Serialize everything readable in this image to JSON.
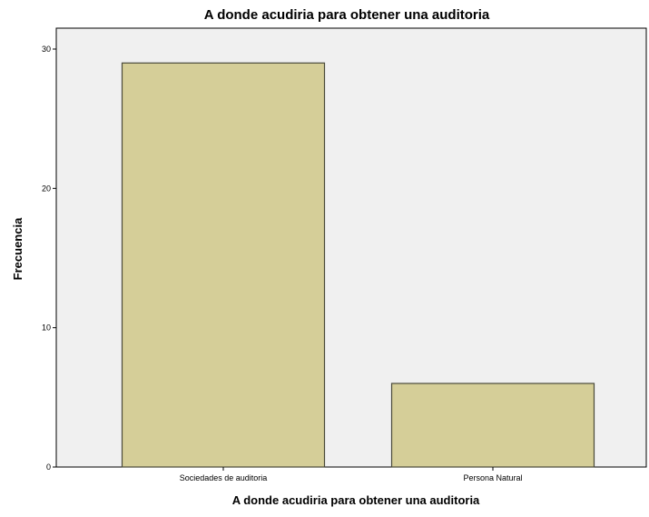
{
  "chart_data": {
    "type": "bar",
    "title": "A donde acudiria para obtener una auditoria",
    "xlabel": "A donde acudiria para obtener una auditoria",
    "ylabel": "Frecuencia",
    "categories": [
      "Sociedades de auditoria",
      "Persona Natural"
    ],
    "values": [
      29,
      6
    ],
    "ylim": [
      0,
      31.5
    ],
    "yticks": [
      0,
      10,
      20,
      30
    ],
    "grid": false,
    "legend": "none",
    "colors": {
      "bar_fill": "#D5CE98",
      "bar_stroke": "#4A4A3A",
      "plot_background": "#F0F0F0",
      "axis": "#000000"
    }
  }
}
